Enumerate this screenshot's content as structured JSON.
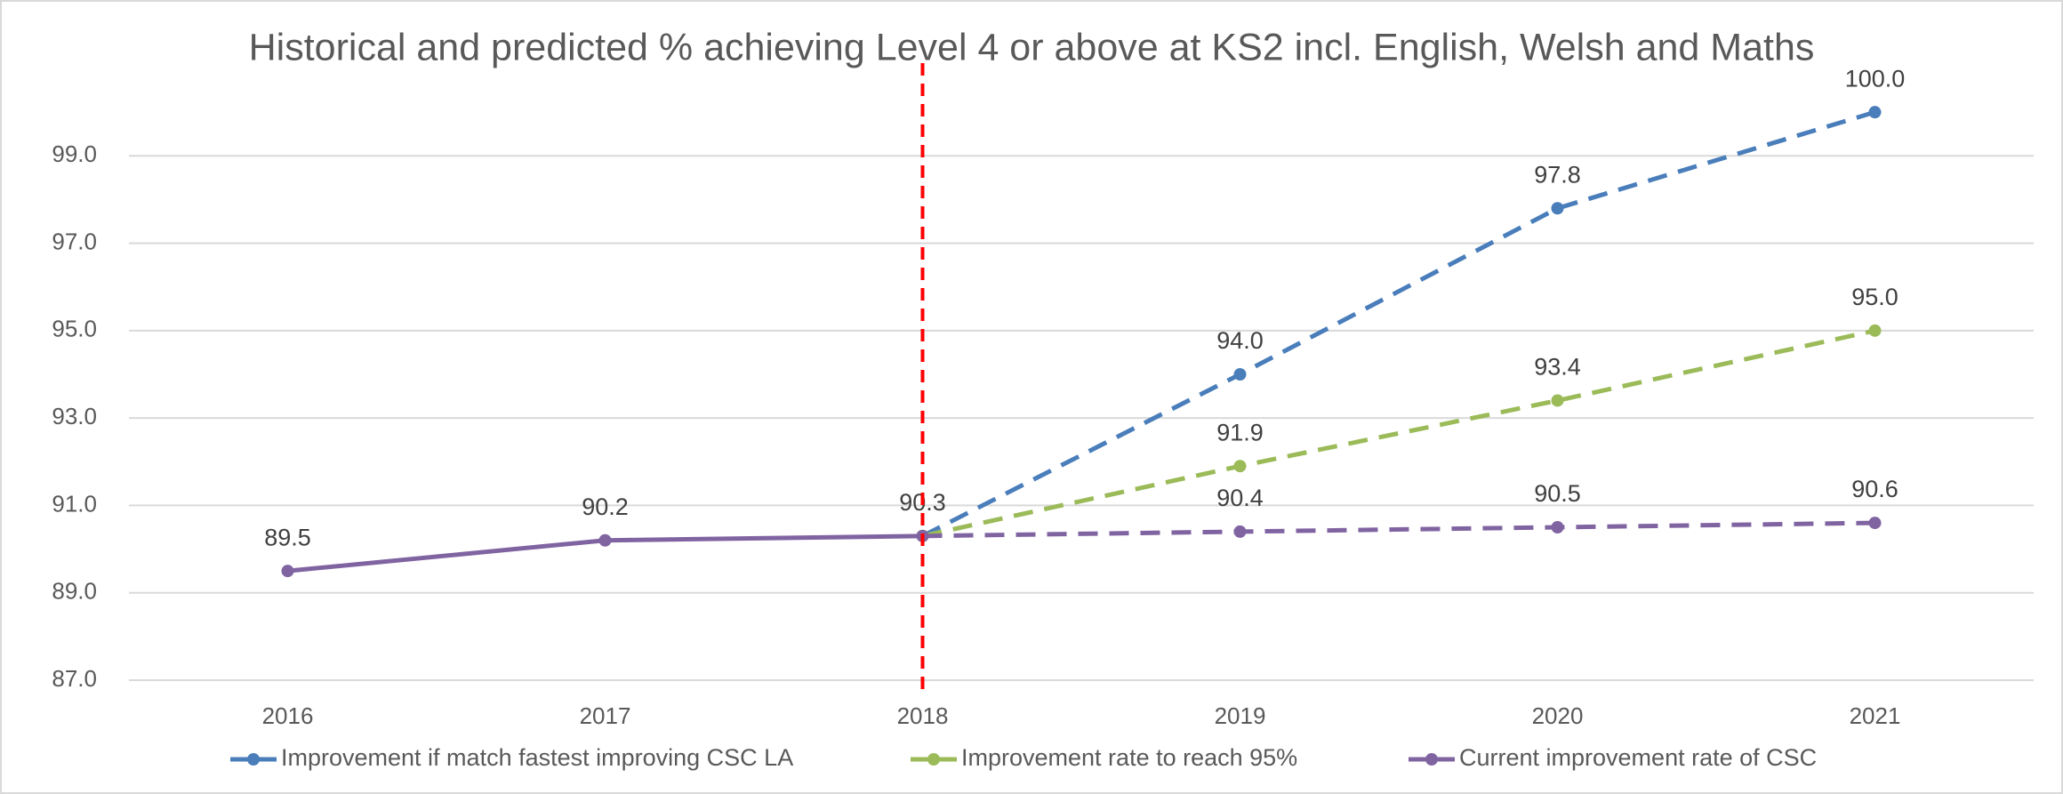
{
  "chart_data": {
    "type": "line",
    "title": "Historical and predicted % achieving Level 4 or above at KS2 incl. English, Welsh and Maths",
    "categories": [
      "2016",
      "2017",
      "2018",
      "2019",
      "2020",
      "2021"
    ],
    "forecast_start": "2018",
    "series": [
      {
        "name": "Improvement if match fastest improving CSC LA",
        "color": "#4a7ebb",
        "values": [
          null,
          null,
          90.3,
          94.0,
          97.8,
          100.0
        ],
        "value_labels": [
          null,
          null,
          null,
          "94.0",
          "97.8",
          "100.0"
        ]
      },
      {
        "name": "Improvement rate to reach 95%",
        "color": "#9bbb59",
        "values": [
          null,
          null,
          90.3,
          91.9,
          93.4,
          95.0
        ],
        "value_labels": [
          null,
          null,
          null,
          "91.9",
          "93.4",
          "95.0"
        ]
      },
      {
        "name": "Current improvement rate of CSC",
        "color": "#8064a2",
        "values": [
          89.5,
          90.2,
          90.3,
          90.4,
          90.5,
          90.6
        ],
        "value_labels": [
          "89.5",
          "90.2",
          "90.3",
          "90.4",
          "90.5",
          "90.6"
        ]
      }
    ],
    "ylim": [
      87,
      101
    ],
    "yticks": [
      {
        "value": 87,
        "label": "87.0"
      },
      {
        "value": 89,
        "label": "89.0"
      },
      {
        "value": 91,
        "label": "91.0"
      },
      {
        "value": 93,
        "label": "93.0"
      },
      {
        "value": 95,
        "label": "95.0"
      },
      {
        "value": 97,
        "label": "97.0"
      },
      {
        "value": 99,
        "label": "99.0"
      }
    ],
    "grid": true,
    "legend": "bottom",
    "forecast_line_color": "#ff0000"
  }
}
